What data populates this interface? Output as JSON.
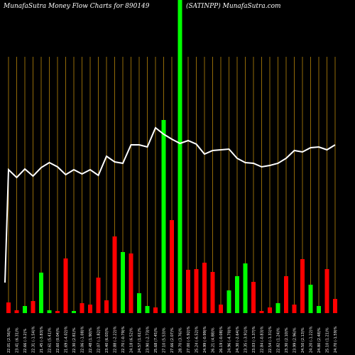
{
  "header": {
    "left": "MunafaSutra  Money Flow  Charts for 890149",
    "right": "(SATINPP) MunafaSutra.com"
  },
  "colors": {
    "background": "#000000",
    "up": "#00ff00",
    "down": "#ff0000",
    "grid": "#b8860b",
    "line": "#ffffff",
    "highlight": "#00ff00"
  },
  "chart_data": {
    "type": "bar",
    "title": "",
    "xlabel": "",
    "ylabel": "",
    "highlight_index": 21,
    "categories": [
      "22.01 (2.56)%",
      "23.41 (6.31)%",
      "22.66 (-3.2)%",
      "22.31 (-1.54)%",
      "21.45 (-3.83)%",
      "22.61 (5.41)%",
      "22.60 (0.04)%",
      "21.69 (-4.02)%",
      "22.30 (2.81)%",
      "22.06 (-1.08)%",
      "22.48 (1.90)%",
      "22.07 (-1.82)%",
      "23.40 (6.03)%",
      "22.88 (-2.22)%",
      "22.70 (-0.79)%",
      "24.18 (6.52)%",
      "24.57 (1.61)%",
      "23.90 (-2.73)%",
      "25.68 (7.45)%",
      "27.10 (5.53)%",
      "27.66 (2.07)%",
      "28.70 (3.76)%",
      "27.00 (-5.92)%",
      "25.24 (-6.52)%",
      "24.99 (-0.99)%",
      "26.21 (4.88)%",
      "26.19 (-0.08)%",
      "24.96 (-4.70)%",
      "24.30 (-2.64)%",
      "23.35 (-3.91)%",
      "23.03 (-1.37)%",
      "22.84 (-0.83)%",
      "22.54 (-1.31)%",
      "22.82 (1.24)%",
      "23.30 (2.10)%",
      "23.99 (2.96)%",
      "24.50 (2.13)%",
      "24.20 (-1.22)%",
      "24.80 (2.48)%",
      "25.10 (1.21)%",
      "24.70 (-1.59)%"
    ],
    "colors": [
      "down",
      "down",
      "up",
      "down",
      "up",
      "up",
      "down",
      "down",
      "up",
      "down",
      "down",
      "down",
      "down",
      "down",
      "up",
      "down",
      "up",
      "up",
      "down",
      "up",
      "down",
      "up",
      "down",
      "down",
      "down",
      "down",
      "down",
      "up",
      "up",
      "up",
      "down",
      "down",
      "down",
      "up",
      "down",
      "down",
      "down",
      "up",
      "up",
      "down",
      "down"
    ],
    "values": [
      15,
      4,
      10,
      17,
      57,
      4,
      3,
      77,
      3,
      14,
      12,
      50,
      18,
      108,
      86,
      84,
      28,
      10,
      8,
      272,
      131,
      22,
      61,
      62,
      71,
      58,
      12,
      32,
      52,
      70,
      44,
      3,
      8,
      14,
      52,
      12,
      76,
      40,
      10,
      62,
      20
    ],
    "line": [
      81,
      70,
      82,
      72,
      84,
      91,
      85,
      74,
      81,
      75,
      81,
      73,
      100,
      92,
      90,
      116,
      116,
      113,
      140,
      131,
      124,
      118,
      122,
      117,
      103,
      108,
      109,
      110,
      97,
      91,
      90,
      85,
      87,
      90,
      97,
      108,
      106,
      112,
      113,
      109,
      116
    ]
  }
}
